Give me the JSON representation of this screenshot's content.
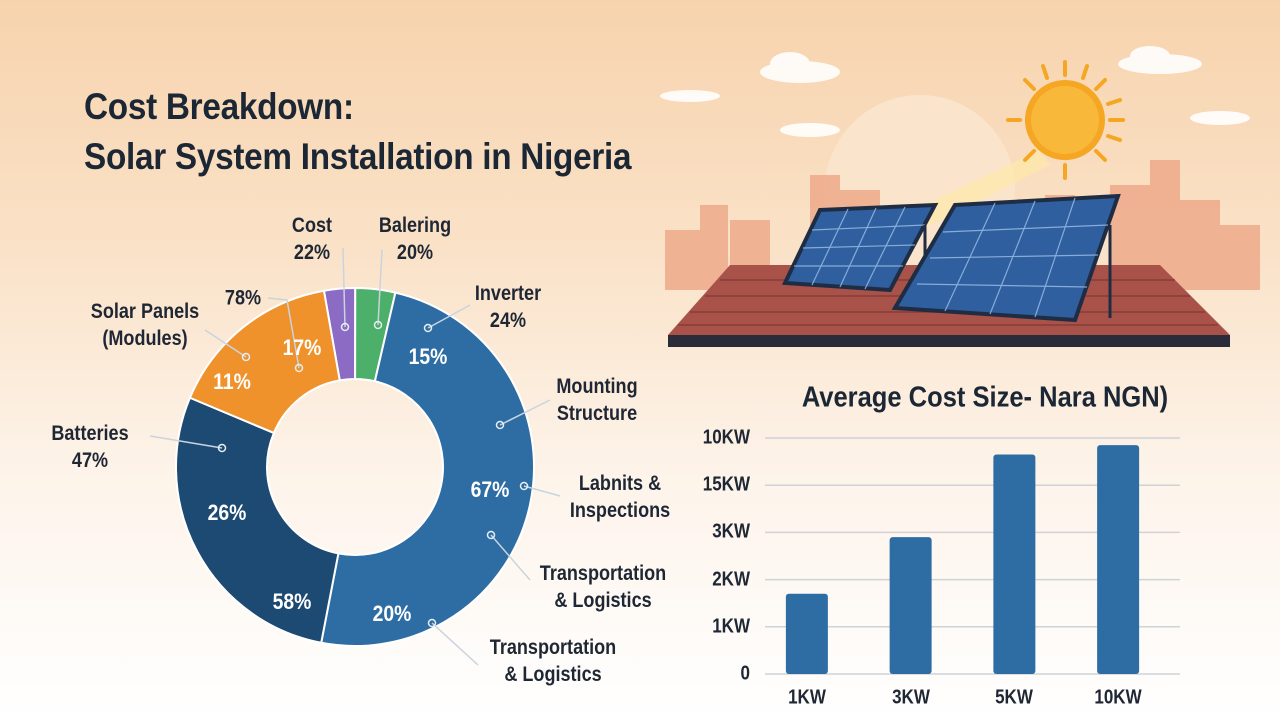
{
  "title_line1": "Cost Breakdown:",
  "title_line2": "Solar System Installation in Nigeria",
  "colors": {
    "light_blue": "#2e6da4",
    "navy": "#1d4a72",
    "orange": "#f0922b",
    "purple": "#8c6bc4",
    "green": "#4caf6a",
    "bar": "#2e6da4"
  },
  "chart_data": [
    {
      "type": "pie",
      "donut": true,
      "slices": [
        {
          "color": "#8c6bc4",
          "share_pct": 2.8
        },
        {
          "color": "#4caf6a",
          "share_pct": 3.6
        },
        {
          "color": "#2e6da4",
          "share_pct": 49.4
        },
        {
          "color": "#1d4a72",
          "share_pct": 28.3
        },
        {
          "color": "#f0922b",
          "share_pct": 15.9
        }
      ],
      "outer_labels": [
        {
          "id": "cost",
          "lines": [
            "Cost",
            "22%"
          ]
        },
        {
          "id": "balering",
          "lines": [
            "Balering",
            "20%"
          ]
        },
        {
          "id": "inverter",
          "lines": [
            "Inverter",
            "24%"
          ]
        },
        {
          "id": "p78",
          "lines": [
            "78%"
          ]
        },
        {
          "id": "solar",
          "lines": [
            "Solar Panels",
            "(Modules)"
          ]
        },
        {
          "id": "batteries",
          "lines": [
            "Batteries",
            "47%"
          ]
        },
        {
          "id": "mounting",
          "lines": [
            "Mounting",
            "Structure"
          ]
        },
        {
          "id": "labnits",
          "lines": [
            "Labnits &",
            "Inspections"
          ]
        },
        {
          "id": "transport1",
          "lines": [
            "Transportation",
            "& Logistics"
          ]
        },
        {
          "id": "transport2",
          "lines": [
            "Transportation",
            "& Logistics"
          ]
        }
      ],
      "inner_labels": [
        "15%",
        "67%",
        "20%",
        "58%",
        "26%",
        "11%",
        "17%"
      ]
    },
    {
      "type": "bar",
      "title": "Average Cost Size- Nara NGN)",
      "categories": [
        "1KW",
        "3KW",
        "5KW",
        "10KW"
      ],
      "values": [
        1.7,
        2.9,
        4.65,
        4.85
      ],
      "y_tick_labels": [
        "0",
        "1KW",
        "2KW",
        "3KW",
        "15KW",
        "10KW"
      ],
      "ylim": [
        0,
        5
      ],
      "grid": true
    }
  ]
}
